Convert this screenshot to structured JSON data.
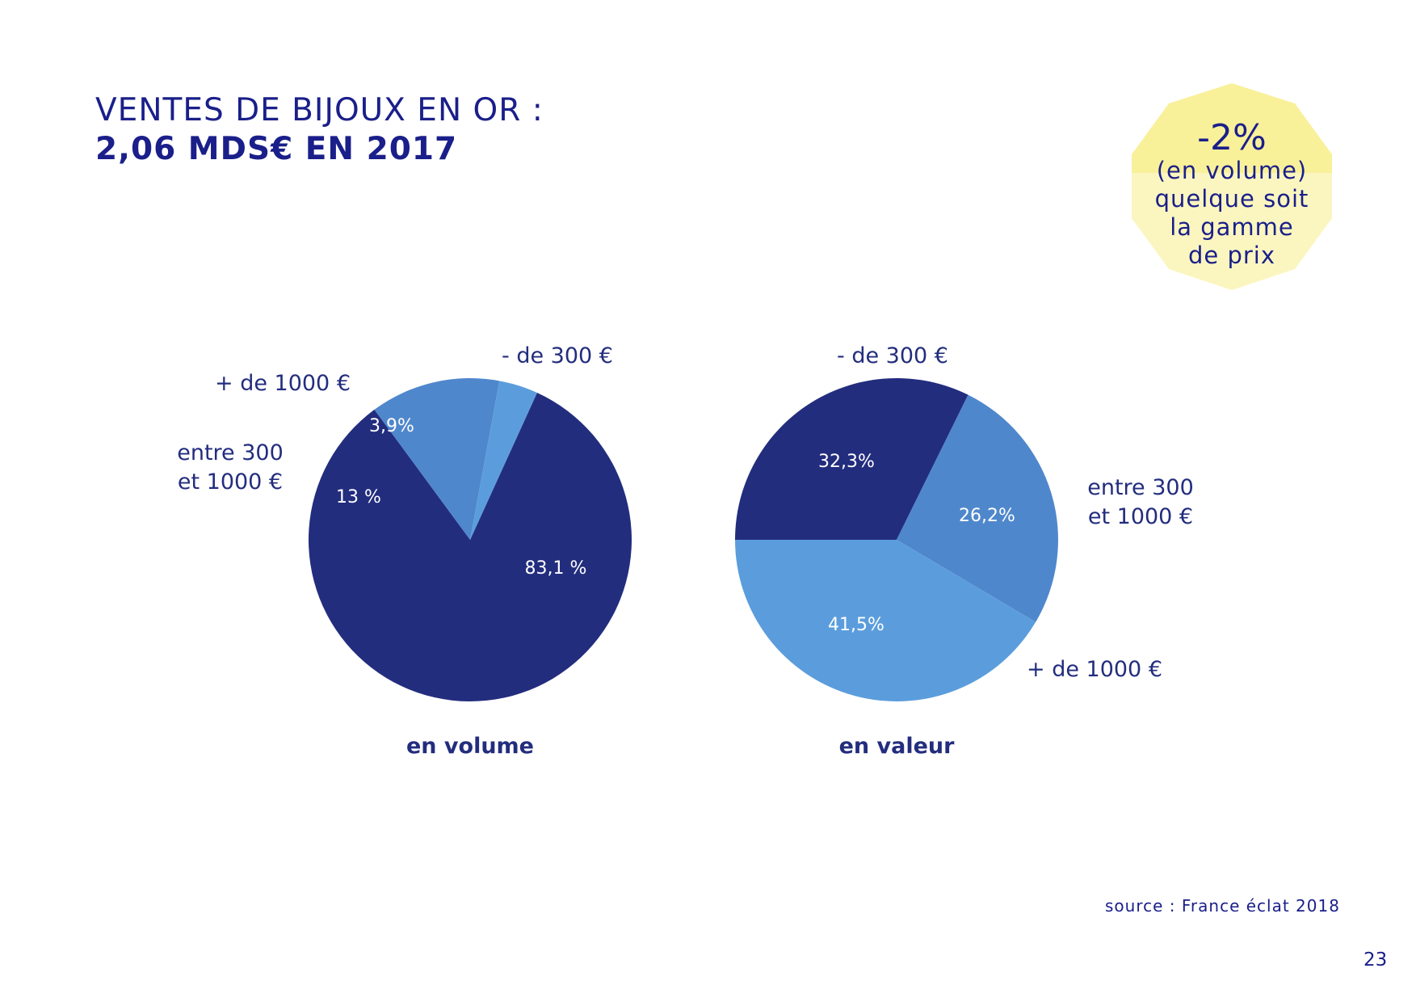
{
  "page": {
    "title_line1": "VENTES DE BIJOUX EN OR :",
    "title_line2": "2,06 MDS€ EN 2017",
    "source": "source :  France éclat 2018",
    "page_number": "23"
  },
  "badge": {
    "value": "-2%",
    "line1": "(en volume)",
    "line2": "quelque soit",
    "line3": "la gamme",
    "line4": "de prix",
    "color_top": "#f9f09a",
    "color_bottom": "#fbf6bf"
  },
  "colors": {
    "dark": "#232d7e",
    "medium": "#4f87cc",
    "light": "#5b9ddc",
    "text": "#1a1f8a",
    "label": "#232d7e"
  },
  "chart_data": [
    {
      "type": "pie",
      "title": "en volume",
      "slices": [
        {
          "label": "- de 300 €",
          "value": 83.1,
          "value_label": "83,1 %",
          "color": "#232d7e"
        },
        {
          "label": "entre 300 et 1000 €",
          "label_lines": [
            "entre 300",
            "et 1000 €"
          ],
          "value": 13,
          "value_label": "13 %",
          "color": "#4f87cc"
        },
        {
          "label": "+ de 1000 €",
          "value": 3.9,
          "value_label": "3,9%",
          "color": "#5b9ddc"
        }
      ]
    },
    {
      "type": "pie",
      "title": "en valeur",
      "slices": [
        {
          "label": "- de 300 €",
          "value": 32.3,
          "value_label": "32,3%",
          "color": "#232d7e"
        },
        {
          "label": "entre 300 et 1000 €",
          "label_lines": [
            "entre 300",
            "et 1000 €"
          ],
          "value": 26.2,
          "value_label": "26,2%",
          "color": "#4f87cc"
        },
        {
          "label": "+ de 1000 €",
          "value": 41.5,
          "value_label": "41,5%",
          "color": "#5b9ddc"
        }
      ]
    }
  ]
}
